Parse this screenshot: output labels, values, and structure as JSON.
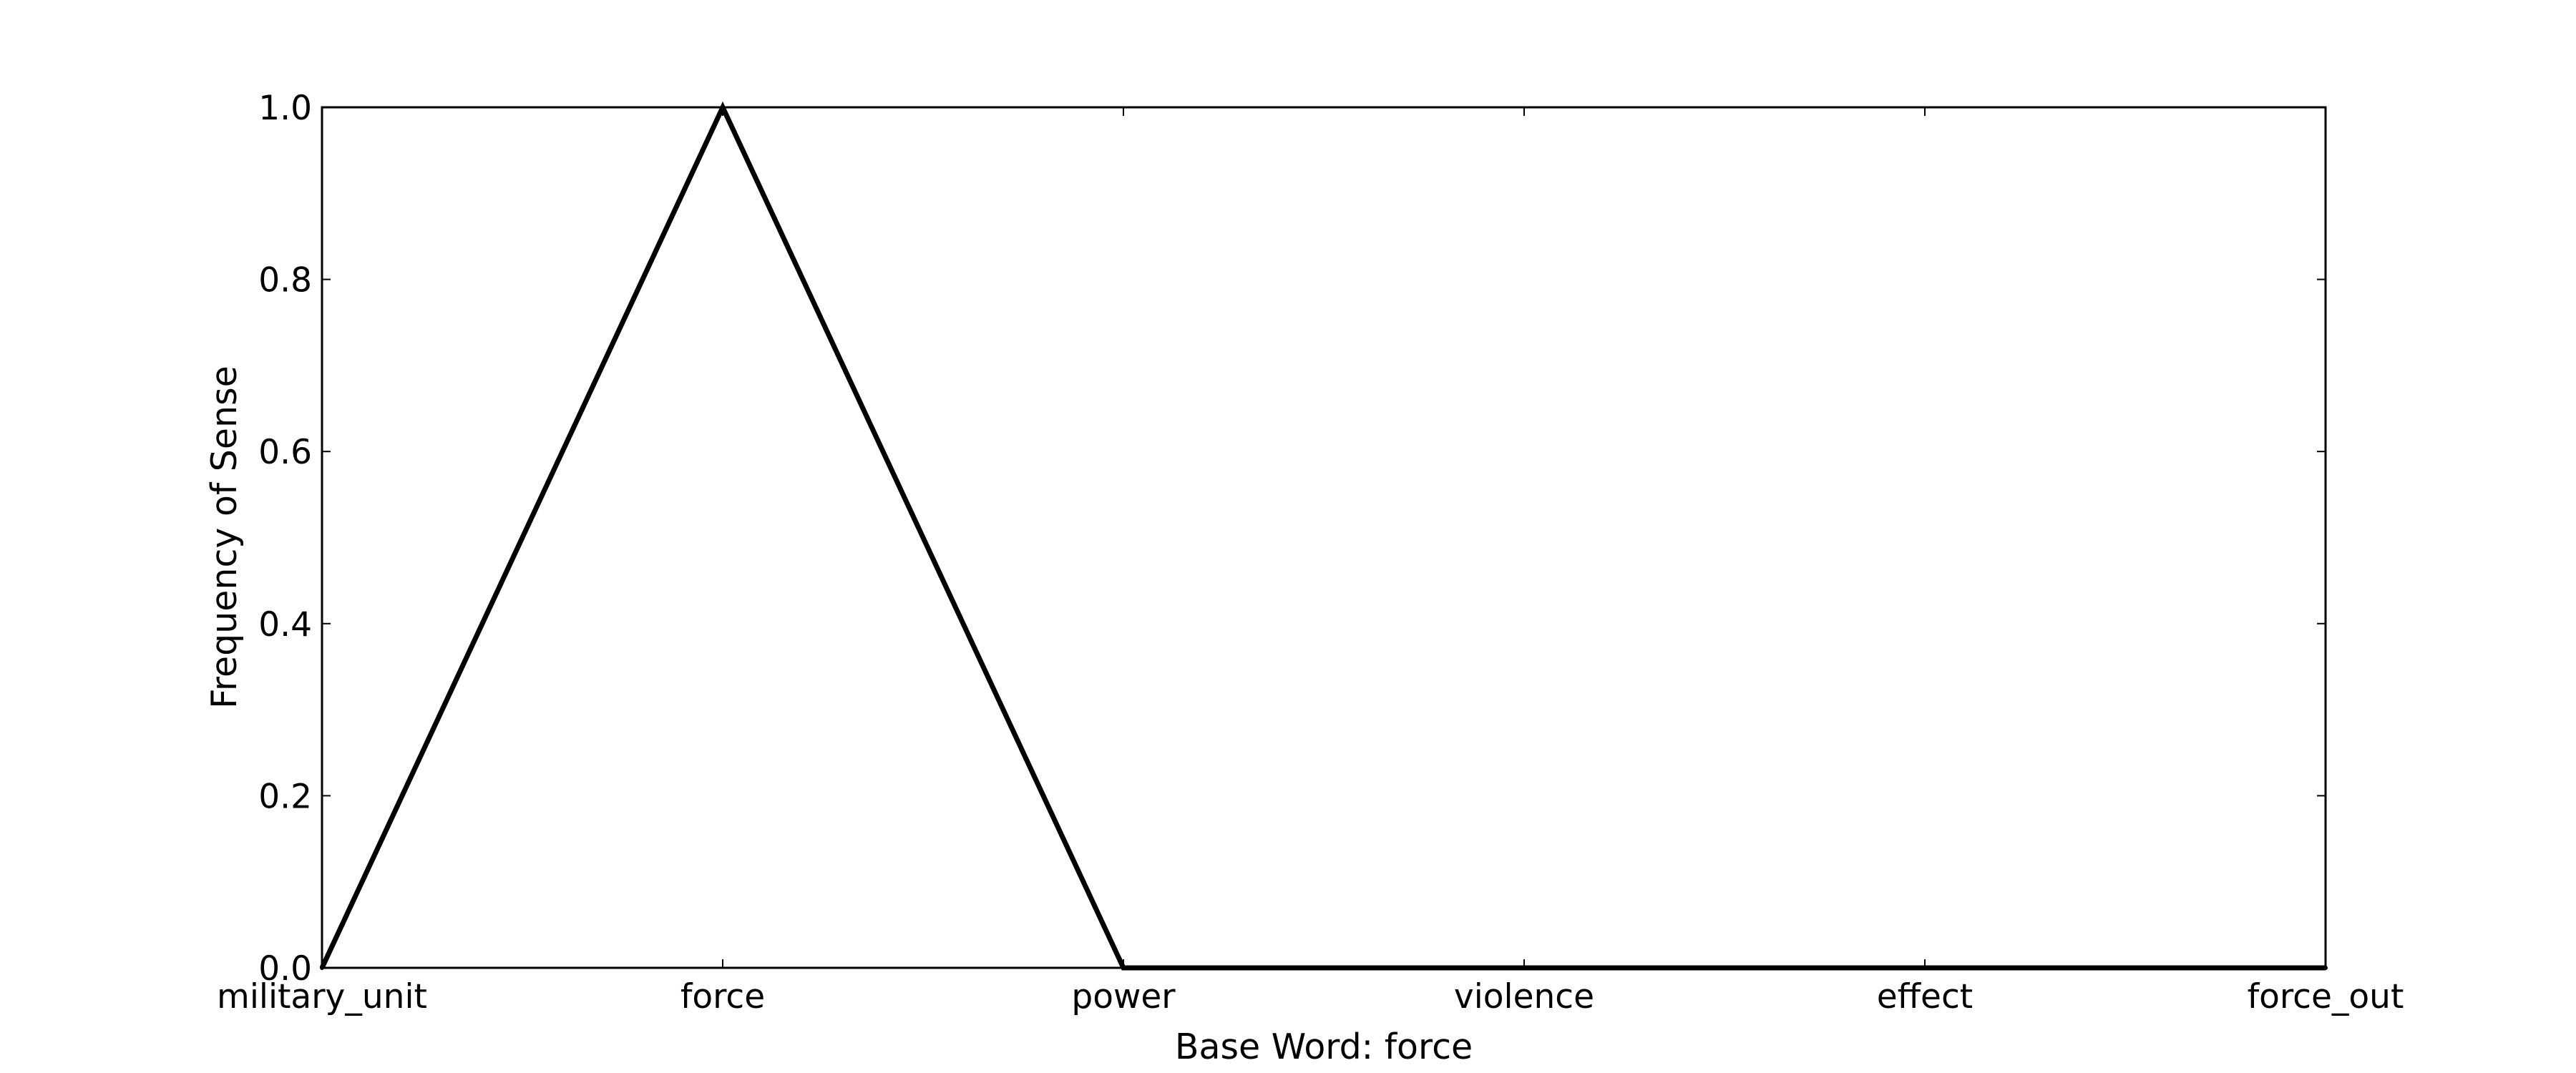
{
  "chart_data": {
    "type": "line",
    "categories": [
      "military_unit",
      "force",
      "power",
      "violence",
      "effect",
      "force_out"
    ],
    "series": [
      {
        "values": [
          0.0,
          1.0,
          0.0,
          0.0,
          0.0,
          0.0
        ]
      }
    ],
    "xlabel": "Base Word: force",
    "ylabel": "Frequency of Sense",
    "ylim": [
      0.0,
      1.0
    ],
    "yticks": [
      "0.0",
      "0.2",
      "0.4",
      "0.6",
      "0.8",
      "1.0"
    ],
    "grid": false,
    "legend": "none",
    "colors": {
      "line": "#000000",
      "frame": "#000000",
      "background": "#ffffff"
    }
  }
}
